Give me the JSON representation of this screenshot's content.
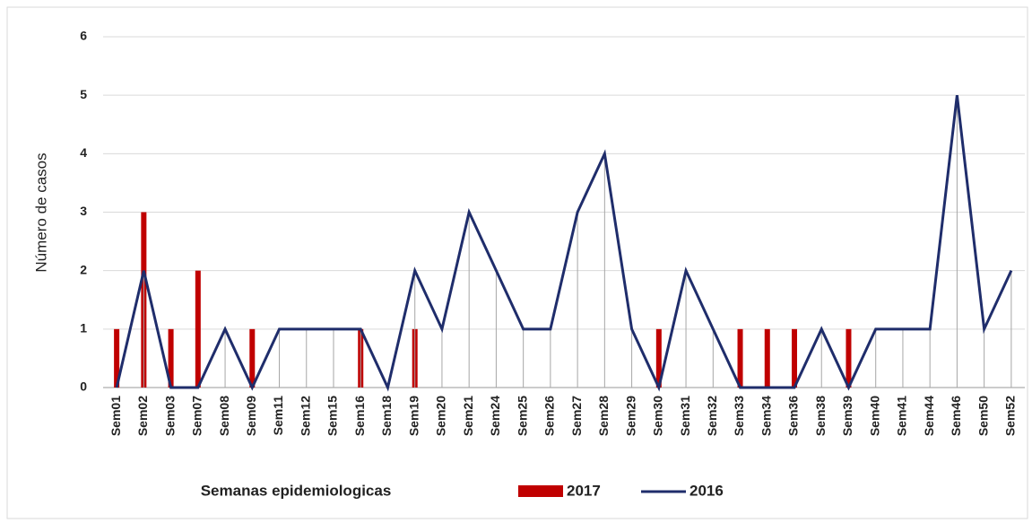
{
  "chart_data": {
    "type": "combo",
    "x_label": "Semanas epidemiologicas",
    "y_label": "Número de casos",
    "categories": [
      "Sem01",
      "Sem02",
      "Sem03",
      "Sem07",
      "Sem08",
      "Sem09",
      "Sem11",
      "Sem12",
      "Sem15",
      "Sem16",
      "Sem18",
      "Sem19",
      "Sem20",
      "Sem21",
      "Sem24",
      "Sem25",
      "Sem26",
      "Sem27",
      "Sem28",
      "Sem29",
      "Sem30",
      "Sem31",
      "Sem32",
      "Sem33",
      "Sem34",
      "Sem36",
      "Sem38",
      "Sem39",
      "Sem40",
      "Sem41",
      "Sem44",
      "Sem46",
      "Sem50",
      "Sem52"
    ],
    "series": [
      {
        "name": "2017",
        "type": "bar",
        "color": "#c00000",
        "values": [
          1,
          3,
          1,
          2,
          0,
          1,
          0,
          0,
          0,
          1,
          0,
          1,
          0,
          0,
          0,
          0,
          0,
          0,
          0,
          0,
          1,
          0,
          0,
          1,
          1,
          1,
          0,
          1,
          0,
          0,
          0,
          0,
          0,
          0
        ]
      },
      {
        "name": "2016",
        "type": "line",
        "color": "#1f2d6b",
        "values": [
          0,
          2,
          0,
          0,
          1,
          0,
          1,
          1,
          1,
          1,
          0,
          2,
          1,
          3,
          2,
          1,
          1,
          3,
          4,
          1,
          0,
          2,
          1,
          0,
          0,
          0,
          1,
          0,
          1,
          1,
          1,
          5,
          1,
          2
        ]
      }
    ],
    "ylim": [
      0,
      6
    ],
    "yticks": [
      0,
      1,
      2,
      3,
      4,
      5,
      6
    ],
    "grid": true,
    "drop_lines": true,
    "legend": "bottom"
  }
}
